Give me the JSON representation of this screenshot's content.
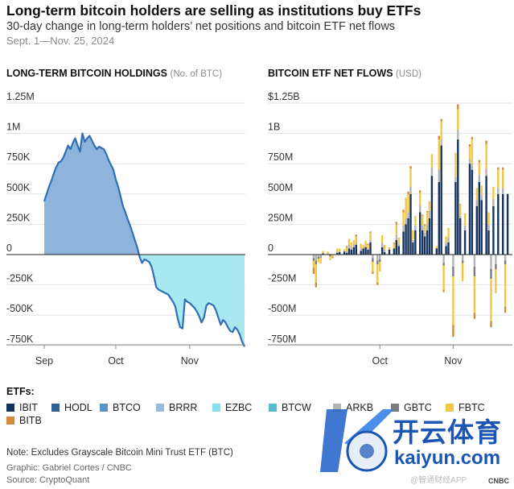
{
  "header": {
    "title": "Long-term bitcoin holders are selling as institutions buy ETFs",
    "subtitle": "30-day change in long-term holders’ net positions and bitcoin ETF net flows",
    "date_range": "Sept. 1—Nov. 25, 2024"
  },
  "left_panel": {
    "title": "LONG-TERM BITCOIN HOLDINGS",
    "unit": "(No. of BTC)"
  },
  "right_panel": {
    "title": "BITCOIN ETF NET FLOWS",
    "unit": "(USD)"
  },
  "legend": {
    "title": "ETFs:",
    "items": [
      {
        "name": "IBIT",
        "color": "#16335e"
      },
      {
        "name": "HODL",
        "color": "#2e5f95"
      },
      {
        "name": "BTCO",
        "color": "#5a92cc"
      },
      {
        "name": "BRRR",
        "color": "#96bce0"
      },
      {
        "name": "EZBC",
        "color": "#86e1ea"
      },
      {
        "name": "BTCW",
        "color": "#55bccb"
      },
      {
        "name": "ARKB",
        "color": "#b4b4b4"
      },
      {
        "name": "GBTC",
        "color": "#7b7b7b"
      },
      {
        "name": "FBTC",
        "color": "#f2c744"
      },
      {
        "name": "BITB",
        "color": "#d48a3c"
      }
    ]
  },
  "footer": {
    "note": "Note: Excludes Grayscale Bitcoin Mini Trust ETF (BTC)",
    "credit": "Graphic: Gabriel Cortes / CNBC",
    "source": "Source: CryptoQuant"
  },
  "watermark": {
    "cn_text": "开云体育",
    "url": "kaiyun.com",
    "small_text": "@智通财经APP",
    "brand": "CNBC"
  },
  "chart_data": [
    {
      "type": "area",
      "title": "LONG-TERM BITCOIN HOLDINGS",
      "ylabel": "No. of BTC",
      "ylim": [
        -780000,
        1250000
      ],
      "y_ticks": [
        1250000,
        1000000,
        750000,
        500000,
        250000,
        0,
        -250000,
        -500000,
        -750000
      ],
      "y_tick_labels": [
        "1.25M",
        "1M",
        "750K",
        "500K",
        "250K",
        "0",
        "-250K",
        "-500K",
        "-750K"
      ],
      "x_tick_labels": [
        "Sep",
        "Oct",
        "Nov"
      ],
      "x_domain_days": [
        0,
        85
      ],
      "x_tick_days": [
        0,
        30,
        61
      ],
      "positive_color": "#8fb4dc",
      "negative_color": "#a8e8f0",
      "line_color": "#2f6fb8",
      "x": [
        0,
        1,
        2,
        3,
        4,
        5,
        6,
        7,
        8,
        9,
        10,
        11,
        12,
        13,
        14,
        15,
        16,
        17,
        18,
        19,
        20,
        21,
        22,
        23,
        24,
        25,
        26,
        27,
        28,
        29,
        30,
        31,
        32,
        33,
        34,
        35,
        36,
        37,
        38,
        39,
        40,
        41,
        42,
        43,
        44,
        45,
        46,
        47,
        48,
        49,
        50,
        51,
        52,
        53,
        54,
        55,
        56,
        57,
        58,
        59,
        60,
        61,
        62,
        63,
        64,
        65,
        66,
        67,
        68,
        69,
        70,
        71,
        72,
        73,
        74,
        75,
        76,
        77,
        78,
        79,
        80,
        81,
        82,
        83,
        84
      ],
      "values": [
        440000,
        500000,
        560000,
        610000,
        670000,
        720000,
        760000,
        770000,
        800000,
        850000,
        900000,
        870000,
        920000,
        960000,
        900000,
        850000,
        1000000,
        930000,
        960000,
        980000,
        940000,
        900000,
        870000,
        890000,
        880000,
        870000,
        830000,
        780000,
        740000,
        700000,
        620000,
        560000,
        480000,
        400000,
        350000,
        290000,
        240000,
        180000,
        120000,
        60000,
        -20000,
        -70000,
        -40000,
        -50000,
        -60000,
        -100000,
        -180000,
        -270000,
        -290000,
        -300000,
        -310000,
        -320000,
        -330000,
        -360000,
        -390000,
        -430000,
        -530000,
        -600000,
        -610000,
        -370000,
        -390000,
        -400000,
        -420000,
        -440000,
        -470000,
        -510000,
        -560000,
        -520000,
        -420000,
        -400000,
        -410000,
        -420000,
        -460000,
        -520000,
        -580000,
        -540000,
        -560000,
        -600000,
        -630000,
        -640000,
        -600000,
        -620000,
        -660000,
        -720000,
        -760000
      ]
    },
    {
      "type": "bar",
      "stacked": true,
      "title": "BITCOIN ETF NET FLOWS",
      "ylabel": "USD",
      "ylim": [
        -750000000,
        1250000000
      ],
      "y_ticks": [
        1250000000,
        1000000000,
        750000000,
        500000000,
        250000000,
        0,
        -250000000,
        -500000000,
        -750000000
      ],
      "y_tick_labels": [
        "$1.25B",
        "1B",
        "750M",
        "500M",
        "250M",
        "0",
        "-250M",
        "-500M",
        "-750M"
      ],
      "x_tick_labels": [
        "Oct",
        "Nov"
      ],
      "x_tick_days": [
        30,
        61
      ],
      "x_domain_days": [
        0,
        85
      ],
      "series_order": [
        "IBIT",
        "HODL",
        "BTCO",
        "BRRR",
        "EZBC",
        "BTCW",
        "ARKB",
        "GBTC",
        "FBTC",
        "BITB"
      ],
      "days": [
        {
          "day": 2,
          "values": {
            "IBIT": 0,
            "FBTC": -60000000,
            "ARKB": -30000000,
            "BITB": -50000000,
            "GBTC": -20000000
          }
        },
        {
          "day": 3,
          "values": {
            "IBIT": 0,
            "FBTC": -150000000,
            "ARKB": -50000000,
            "BITB": -40000000,
            "GBTC": -30000000
          }
        },
        {
          "day": 4,
          "values": {
            "IBIT": 0,
            "FBTC": -30000000,
            "ARKB": -20000000,
            "GBTC": -15000000
          }
        },
        {
          "day": 5,
          "values": {
            "IBIT": 0,
            "FBTC": -50000000,
            "ARKB": -15000000,
            "GBTC": -10000000
          }
        },
        {
          "day": 6,
          "values": {
            "IBIT": 10000000,
            "FBTC": 20000000
          }
        },
        {
          "day": 8,
          "values": {
            "IBIT": 0,
            "FBTC": 15000000,
            "ARKB": 10000000
          }
        },
        {
          "day": 9,
          "values": {
            "IBIT": 0,
            "FBTC": -30000000,
            "GBTC": -15000000
          }
        },
        {
          "day": 10,
          "values": {
            "IBIT": 0,
            "FBTC": -20000000,
            "BITB": -10000000
          }
        },
        {
          "day": 12,
          "values": {
            "IBIT": 15000000,
            "FBTC": 25000000,
            "ARKB": 10000000
          }
        },
        {
          "day": 13,
          "values": {
            "IBIT": 20000000,
            "FBTC": 20000000,
            "ARKB": 10000000
          }
        },
        {
          "day": 15,
          "values": {
            "IBIT": 25000000,
            "FBTC": 20000000
          }
        },
        {
          "day": 16,
          "values": {
            "IBIT": 15000000,
            "FBTC": 30000000,
            "ARKB": 15000000,
            "BITB": 10000000
          }
        },
        {
          "day": 17,
          "values": {
            "IBIT": 50000000,
            "FBTC": 50000000,
            "ARKB": 30000000
          }
        },
        {
          "day": 18,
          "values": {
            "IBIT": 40000000,
            "FBTC": 40000000,
            "ARKB": 20000000
          }
        },
        {
          "day": 19,
          "values": {
            "IBIT": 60000000,
            "FBTC": 40000000,
            "ARKB": 20000000
          }
        },
        {
          "day": 20,
          "values": {
            "IBIT": 80000000,
            "FBTC": 50000000,
            "ARKB": 20000000,
            "BITB": 15000000
          }
        },
        {
          "day": 22,
          "values": {
            "IBIT": 30000000,
            "FBTC": 40000000,
            "ARKB": 20000000
          }
        },
        {
          "day": 23,
          "values": {
            "IBIT": 50000000,
            "FBTC": 30000000
          }
        },
        {
          "day": 24,
          "values": {
            "IBIT": 60000000,
            "FBTC": 40000000,
            "ARKB": 15000000
          }
        },
        {
          "day": 25,
          "values": {
            "IBIT": 40000000,
            "FBTC": 30000000,
            "ARKB": 10000000,
            "BITB": 10000000
          }
        },
        {
          "day": 26,
          "values": {
            "IBIT": 100000000,
            "FBTC": 60000000,
            "ARKB": 20000000,
            "BITB": 10000000
          }
        },
        {
          "day": 27,
          "values": {
            "IBIT": 0,
            "FBTC": -80000000,
            "ARKB": -30000000,
            "GBTC": -30000000,
            "BITB": -20000000
          }
        },
        {
          "day": 29,
          "values": {
            "IBIT": 0,
            "FBTC": -150000000,
            "ARKB": -50000000,
            "GBTC": -30000000,
            "BITB": -20000000
          }
        },
        {
          "day": 30,
          "values": {
            "IBIT": 0,
            "FBTC": -80000000,
            "ARKB": -40000000,
            "GBTC": -20000000
          }
        },
        {
          "day": 31,
          "values": {
            "IBIT": 60000000,
            "FBTC": 60000000,
            "ARKB": 40000000
          }
        },
        {
          "day": 32,
          "values": {
            "IBIT": 20000000,
            "FBTC": 40000000,
            "ARKB": 20000000
          }
        },
        {
          "day": 34,
          "values": {
            "IBIT": 40000000,
            "FBTC": 20000000
          }
        },
        {
          "day": 36,
          "values": {
            "IBIT": 50000000,
            "FBTC": 40000000,
            "BITB": 10000000
          }
        },
        {
          "day": 37,
          "values": {
            "IBIT": 120000000,
            "FBTC": 90000000,
            "ARKB": 40000000,
            "BITB": 20000000
          }
        },
        {
          "day": 38,
          "values": {
            "IBIT": 70000000,
            "FBTC": 50000000,
            "ARKB": 20000000
          }
        },
        {
          "day": 40,
          "values": {
            "IBIT": 190000000,
            "FBTC": 110000000,
            "ARKB": 50000000,
            "BITB": 20000000
          }
        },
        {
          "day": 41,
          "values": {
            "IBIT": 250000000,
            "FBTC": 170000000,
            "ARKB": 50000000
          }
        },
        {
          "day": 42,
          "values": {
            "IBIT": 300000000,
            "FBTC": 150000000,
            "ARKB": 50000000,
            "BITB": 20000000
          }
        },
        {
          "day": 43,
          "values": {
            "IBIT": 500000000,
            "FBTC": 150000000,
            "ARKB": 60000000,
            "BITB": 20000000
          }
        },
        {
          "day": 44,
          "values": {
            "IBIT": 100000000,
            "FBTC": 80000000,
            "ARKB": 20000000
          }
        },
        {
          "day": 45,
          "values": {
            "IBIT": 200000000,
            "FBTC": 80000000,
            "ARKB": 40000000
          }
        },
        {
          "day": 47,
          "values": {
            "IBIT": 350000000,
            "FBTC": 100000000,
            "ARKB": 60000000,
            "BITB": 20000000
          }
        },
        {
          "day": 48,
          "values": {
            "IBIT": 200000000,
            "FBTC": 80000000,
            "ARKB": 40000000,
            "BITB": 10000000
          }
        },
        {
          "day": 49,
          "values": {
            "IBIT": 150000000,
            "FBTC": 60000000,
            "ARKB": 30000000,
            "BITB": 10000000
          }
        },
        {
          "day": 50,
          "values": {
            "IBIT": 200000000,
            "FBTC": 100000000,
            "ARKB": 50000000,
            "BITB": 10000000
          }
        },
        {
          "day": 51,
          "values": {
            "IBIT": 300000000,
            "FBTC": 80000000,
            "ARKB": 60000000
          }
        },
        {
          "day": 52,
          "values": {
            "IBIT": 650000000,
            "FBTC": 110000000,
            "ARKB": 70000000
          }
        },
        {
          "day": 54,
          "values": {
            "IBIT": 50000000,
            "FBTC": 20000000
          }
        },
        {
          "day": 55,
          "values": {
            "IBIT": 600000000,
            "FBTC": 250000000,
            "ARKB": 100000000,
            "BITB": 30000000
          }
        },
        {
          "day": 56,
          "values": {
            "IBIT": 900000000,
            "FBTC": 150000000,
            "ARKB": 50000000,
            "BITB": 20000000
          }
        },
        {
          "day": 57,
          "values": {
            "IBIT": 0,
            "FBTC": -200000000,
            "ARKB": -70000000,
            "GBTC": -20000000,
            "BITB": -20000000
          }
        },
        {
          "day": 58,
          "values": {
            "IBIT": 70000000,
            "FBTC": 50000000,
            "ARKB": 30000000
          }
        },
        {
          "day": 59,
          "values": {
            "IBIT": 100000000,
            "FBTC": 80000000,
            "ARKB": 40000000
          }
        },
        {
          "day": 61,
          "values": {
            "IBIT": 0,
            "FBTC": -400000000,
            "ARKB": -100000000,
            "GBTC": -80000000,
            "BITB": -100000000
          }
        },
        {
          "day": 62,
          "values": {
            "IBIT": 600000000,
            "FBTC": 200000000,
            "ARKB": 40000000
          }
        },
        {
          "day": 63,
          "values": {
            "IBIT": 950000000,
            "FBTC": 170000000,
            "ARKB": 80000000,
            "BITB": 40000000
          }
        },
        {
          "day": 64,
          "values": {
            "IBIT": 300000000,
            "FBTC": 100000000,
            "ARKB": 20000000
          }
        },
        {
          "day": 65,
          "values": {
            "IBIT": 0,
            "FBTC": -150000000,
            "ARKB": -50000000,
            "GBTC": -20000000
          }
        },
        {
          "day": 66,
          "values": {
            "IBIT": 200000000,
            "FBTC": 100000000,
            "ARKB": 40000000
          }
        },
        {
          "day": 68,
          "values": {
            "IBIT": 750000000,
            "FBTC": 100000000,
            "ARKB": 40000000,
            "BITB": 20000000
          }
        },
        {
          "day": 69,
          "values": {
            "IBIT": 700000000,
            "FBTC": 200000000,
            "ARKB": 50000000,
            "BITB": 20000000
          }
        },
        {
          "day": 70,
          "values": {
            "IBIT": 0,
            "FBTC": -300000000,
            "ARKB": -100000000,
            "GBTC": -80000000,
            "BITB": -50000000
          }
        },
        {
          "day": 71,
          "values": {
            "IBIT": 400000000,
            "FBTC": 100000000,
            "ARKB": 50000000
          }
        },
        {
          "day": 72,
          "values": {
            "IBIT": 600000000,
            "FBTC": 100000000,
            "ARKB": 60000000,
            "BITB": 20000000
          }
        },
        {
          "day": 73,
          "values": {
            "IBIT": 450000000,
            "FBTC": 80000000,
            "ARKB": 40000000
          }
        },
        {
          "day": 75,
          "values": {
            "IBIT": 650000000,
            "FBTC": 200000000,
            "ARKB": 60000000,
            "BITB": 30000000
          }
        },
        {
          "day": 76,
          "values": {
            "IBIT": 200000000,
            "FBTC": 100000000,
            "ARKB": 50000000
          }
        },
        {
          "day": 77,
          "values": {
            "IBIT": 0,
            "FBTC": -350000000,
            "ARKB": -120000000,
            "GBTC": -80000000,
            "BITB": -50000000
          }
        },
        {
          "day": 78,
          "values": {
            "IBIT": 400000000,
            "FBTC": 100000000,
            "ARKB": 60000000
          }
        },
        {
          "day": 79,
          "values": {
            "IBIT": 0,
            "FBTC": -200000000,
            "ARKB": -80000000,
            "GBTC": -40000000
          }
        },
        {
          "day": 80,
          "values": {
            "IBIT": 500000000,
            "FBTC": 150000000,
            "ARKB": 50000000,
            "BITB": 20000000
          }
        },
        {
          "day": 82,
          "values": {
            "IBIT": 500000000,
            "FBTC": 150000000,
            "ARKB": 50000000,
            "BITB": 20000000
          }
        },
        {
          "day": 83,
          "values": {
            "IBIT": 0,
            "FBTC": -350000000,
            "ARKB": -50000000,
            "GBTC": -30000000,
            "BITB": -50000000
          }
        },
        {
          "day": 84,
          "values": {
            "IBIT": 500000000
          }
        }
      ]
    }
  ]
}
